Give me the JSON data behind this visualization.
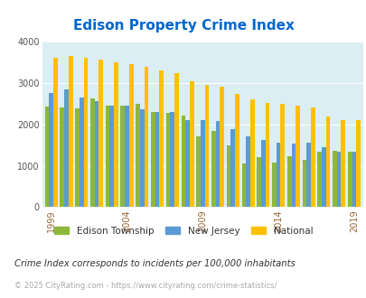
{
  "title": "Edison Property Crime Index",
  "title_color": "#0066cc",
  "subtitle": "Crime Index corresponds to incidents per 100,000 inhabitants",
  "footer": "© 2025 CityRating.com - https://www.cityrating.com/crime-statistics/",
  "years": [
    1999,
    2000,
    2001,
    2002,
    2003,
    2004,
    2005,
    2006,
    2007,
    2008,
    2009,
    2010,
    2011,
    2012,
    2013,
    2014,
    2015,
    2016,
    2017,
    2018,
    2019
  ],
  "edison": [
    2430,
    2410,
    2380,
    2620,
    2460,
    2460,
    2500,
    2310,
    2270,
    2220,
    1720,
    1840,
    1490,
    1060,
    1210,
    1080,
    1230,
    1150,
    1340,
    1360,
    1350
  ],
  "new_jersey": [
    2770,
    2840,
    2640,
    2560,
    2460,
    2450,
    2360,
    2310,
    2310,
    2110,
    2100,
    2080,
    1890,
    1720,
    1620,
    1560,
    1530,
    1550,
    1440,
    1330,
    1350
  ],
  "national": [
    3610,
    3650,
    3620,
    3560,
    3510,
    3460,
    3390,
    3300,
    3250,
    3050,
    2960,
    2920,
    2730,
    2600,
    2510,
    2490,
    2450,
    2400,
    2200,
    2100,
    2100
  ],
  "edison_color": "#8db83a",
  "nj_color": "#5b9bd5",
  "national_color": "#ffc000",
  "bg_color": "#daeef3",
  "ylim": [
    0,
    4000
  ],
  "yticks": [
    0,
    1000,
    2000,
    3000,
    4000
  ],
  "xtick_years": [
    1999,
    2004,
    2009,
    2014,
    2019
  ],
  "bar_width": 0.28,
  "legend_labels": [
    "Edison Township",
    "New Jersey",
    "National"
  ],
  "legend_colors": [
    "#8db83a",
    "#5b9bd5",
    "#ffc000"
  ]
}
